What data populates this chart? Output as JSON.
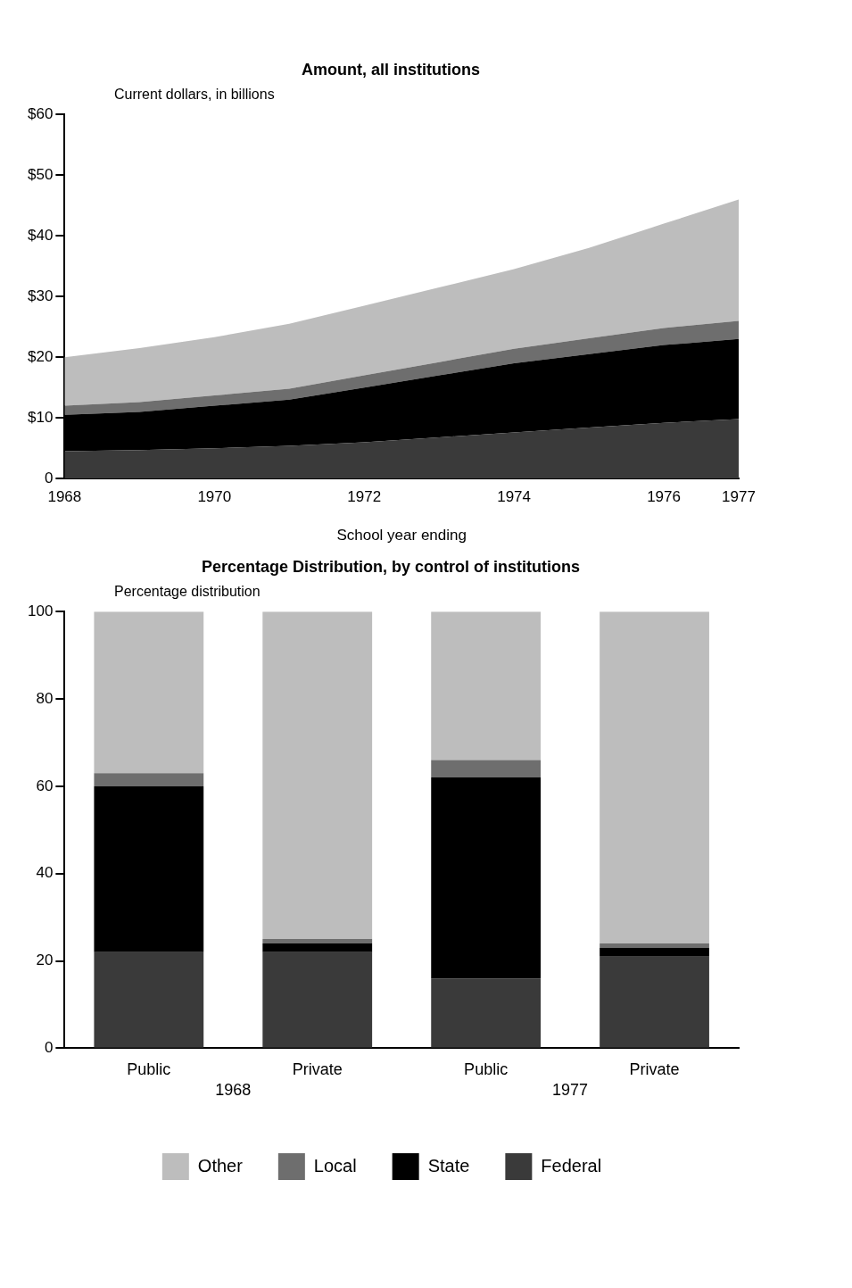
{
  "chart_data": [
    {
      "type": "area",
      "title": "Amount, all institutions",
      "ylabel": "Current dollars, in billions",
      "xlabel": "School year ending",
      "x": [
        1968,
        1969,
        1970,
        1971,
        1972,
        1973,
        1974,
        1975,
        1976,
        1977
      ],
      "stacked": true,
      "series": [
        {
          "color": "#3a3a3a",
          "values": [
            4.5,
            4.7,
            5,
            5.4,
            6,
            6.8,
            7.6,
            8.4,
            9.2,
            9.8
          ]
        },
        {
          "color": "#000000",
          "values": [
            6,
            6.3,
            7,
            7.6,
            9,
            10.2,
            11.4,
            12.1,
            12.8,
            13.2
          ]
        },
        {
          "color": "#6e6e6e",
          "values": [
            1.5,
            1.6,
            1.7,
            1.8,
            2,
            2.2,
            2.4,
            2.6,
            2.8,
            3
          ]
        },
        {
          "color": "#bdbdbd",
          "values": [
            8,
            8.9,
            9.6,
            10.7,
            11.5,
            12.3,
            13.1,
            14.9,
            17.2,
            20
          ]
        }
      ],
      "xlim": [
        1968,
        1977
      ],
      "xticks": [
        1968,
        1970,
        1972,
        1974,
        1976,
        1977
      ],
      "ylim": [
        0,
        60
      ],
      "yticks": [
        0,
        {
          "value": 10,
          "label": "$10"
        },
        {
          "value": 20,
          "label": "$20"
        },
        {
          "value": 30,
          "label": "$30"
        },
        {
          "value": 40,
          "label": "$40"
        },
        {
          "value": 50,
          "label": "$50"
        },
        {
          "value": 60,
          "label": "$60"
        }
      ],
      "grid": false,
      "legend": false
    },
    {
      "type": "bar",
      "title": "Percentage Distribution, by control of institutions",
      "ylabel": "Percentage distribution",
      "categories": [
        "Public",
        "Private",
        "Public",
        "Private"
      ],
      "stacked": true,
      "series": [
        {
          "name": "Federal",
          "color": "#3a3a3a",
          "values": [
            22,
            22,
            16,
            21
          ]
        },
        {
          "name": "State",
          "color": "#000000",
          "values": [
            38,
            2,
            46,
            2
          ]
        },
        {
          "name": "Local",
          "color": "#6e6e6e",
          "values": [
            3,
            1,
            4,
            1
          ]
        },
        {
          "name": "Other",
          "color": "#bdbdbd",
          "values": [
            37,
            75,
            34,
            76
          ]
        }
      ],
      "ylim": [
        0,
        100
      ],
      "yticks": [
        0,
        20,
        40,
        60,
        80,
        100
      ],
      "grid": false,
      "legend": "bottom",
      "annotations": [
        "1968",
        "1977"
      ]
    }
  ]
}
